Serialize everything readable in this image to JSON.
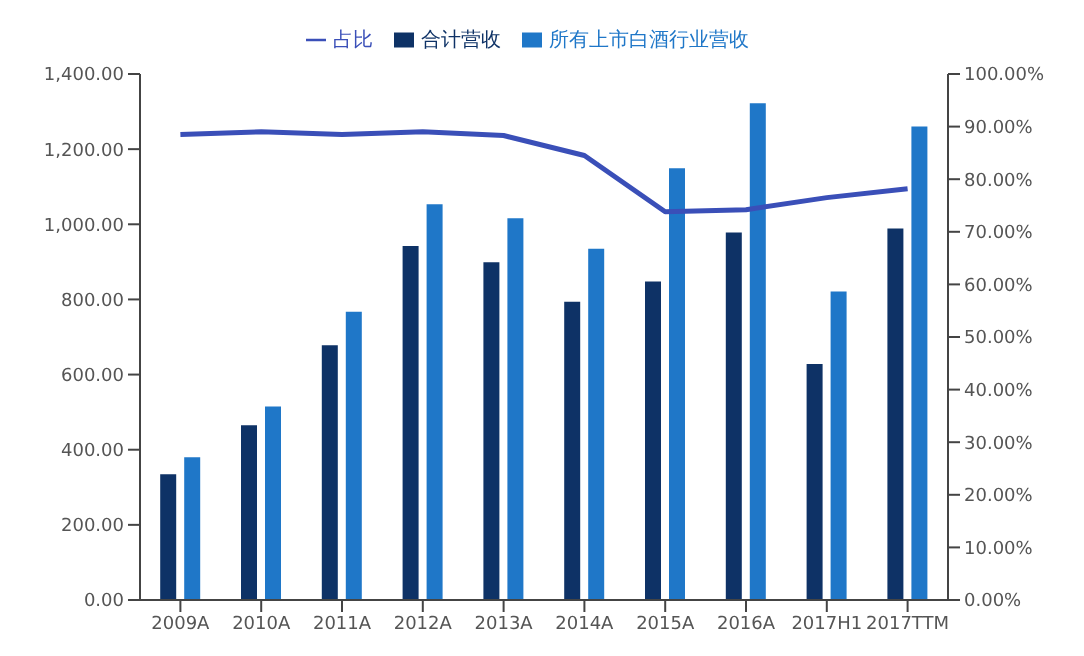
{
  "chart_data": {
    "type": "bar",
    "categories": [
      "2009A",
      "2010A",
      "2011A",
      "2012A",
      "2013A",
      "2014A",
      "2015A",
      "2016A",
      "2017H1",
      "2017TTM"
    ],
    "series": [
      {
        "name": "合计营收",
        "color": "#0e3266",
        "values": [
          335,
          465,
          678,
          942,
          899,
          794,
          848,
          978,
          628,
          989
        ]
      },
      {
        "name": "所有上市白酒行业营收",
        "color": "#1f77c8",
        "values": [
          380,
          515,
          767,
          1053,
          1016,
          935,
          1149,
          1322,
          821,
          1260
        ]
      },
      {
        "name": "占比",
        "type": "line",
        "axis": "y2",
        "color": "#3a4fb8",
        "values": [
          88.5,
          89,
          88.5,
          89,
          88.3,
          84.5,
          73.8,
          74.2,
          76.5,
          78.2
        ]
      }
    ],
    "ylim": [
      0,
      1400
    ],
    "yticks": [
      {
        "value": 0,
        "label": "0.00"
      },
      {
        "value": 200,
        "label": "200.00"
      },
      {
        "value": 400,
        "label": "400.00"
      },
      {
        "value": 600,
        "label": "600.00"
      },
      {
        "value": 800,
        "label": "800.00"
      },
      {
        "value": 1000,
        "label": "1,000.00"
      },
      {
        "value": 1200,
        "label": "1,200.00"
      },
      {
        "value": 1400,
        "label": "1,400.00"
      }
    ],
    "y2lim": [
      0,
      100
    ],
    "y2ticks": [
      {
        "value": 0,
        "label": "0.00%"
      },
      {
        "value": 10,
        "label": "10.00%"
      },
      {
        "value": 20,
        "label": "20.00%"
      },
      {
        "value": 30,
        "label": "30.00%"
      },
      {
        "value": 40,
        "label": "40.00%"
      },
      {
        "value": 50,
        "label": "50.00%"
      },
      {
        "value": 60,
        "label": "60.00%"
      },
      {
        "value": 70,
        "label": "70.00%"
      },
      {
        "value": 80,
        "label": "80.00%"
      },
      {
        "value": 90,
        "label": "90.00%"
      },
      {
        "value": 100,
        "label": "100.00%"
      }
    ],
    "legend": "top",
    "grid": false,
    "marker": "none"
  }
}
